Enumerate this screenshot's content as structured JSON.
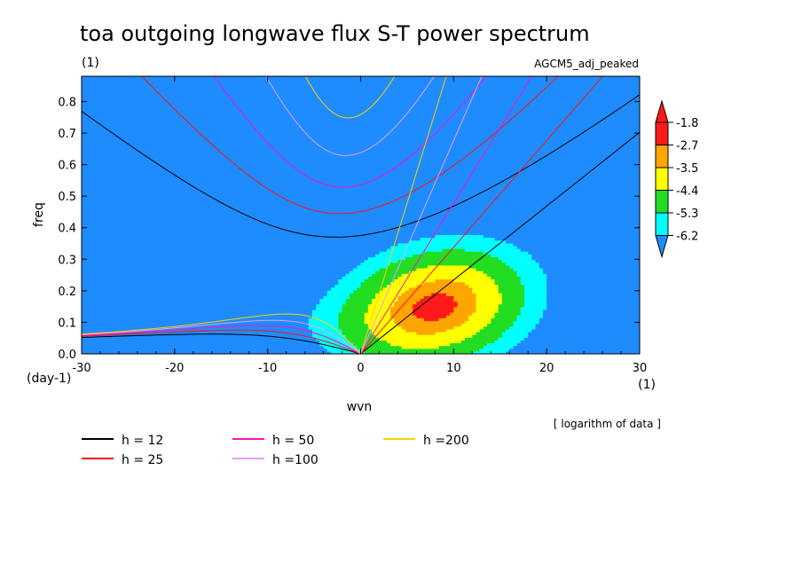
{
  "chart_data": {
    "type": "heatmap",
    "title": "toa outgoing longwave flux S-T power spectrum",
    "title_units": "(1)",
    "subtitle_right": "AGCM5_adj_peaked",
    "xlabel": "wvn",
    "ylabel": "freq",
    "x_units": "(1)",
    "y_units": "(day-1)",
    "note": "[ logarithm of data ]",
    "xlim": [
      -30,
      30
    ],
    "ylim": [
      0.0,
      0.88
    ],
    "x_ticks": [
      -30,
      -20,
      -10,
      0,
      10,
      20,
      30
    ],
    "x_tick_labels": [
      "-30",
      "-20",
      "-10",
      "0",
      "10",
      "20",
      "30"
    ],
    "y_ticks": [
      0.0,
      0.1,
      0.2,
      0.3,
      0.4,
      0.5,
      0.6,
      0.7,
      0.8
    ],
    "y_tick_labels": [
      "0.0",
      "0.1",
      "0.2",
      "0.3",
      "0.4",
      "0.5",
      "0.6",
      "0.7",
      "0.8"
    ],
    "colorbar": {
      "levels": [
        -6.2,
        -5.3,
        -4.4,
        -3.5,
        -2.7,
        -1.8
      ],
      "level_labels": [
        "-6.2",
        "-5.3",
        "-4.4",
        "-3.5",
        "-2.7",
        "-1.8"
      ],
      "colors": [
        "#1e8cff",
        "#00ffff",
        "#22dd22",
        "#ffff00",
        "#ffa500",
        "#ff1a1a",
        "#ff1a1a"
      ]
    },
    "field": {
      "description": "log10 power; peak near wvn 8, freq 0.15",
      "peak": {
        "wvn": 8,
        "freq": 0.15
      }
    },
    "dispersion_curves": {
      "legend": [
        {
          "label": "h = 12",
          "color": "#000000",
          "h": 12
        },
        {
          "label": "h = 25",
          "color": "#ff1010",
          "h": 25
        },
        {
          "label": "h = 50",
          "color": "#ff10c0",
          "h": 50
        },
        {
          "label": "h =100",
          "color": "#e0a0ff",
          "h": 100
        },
        {
          "label": "h =200",
          "color": "#ffd000",
          "h": 200
        }
      ]
    }
  }
}
